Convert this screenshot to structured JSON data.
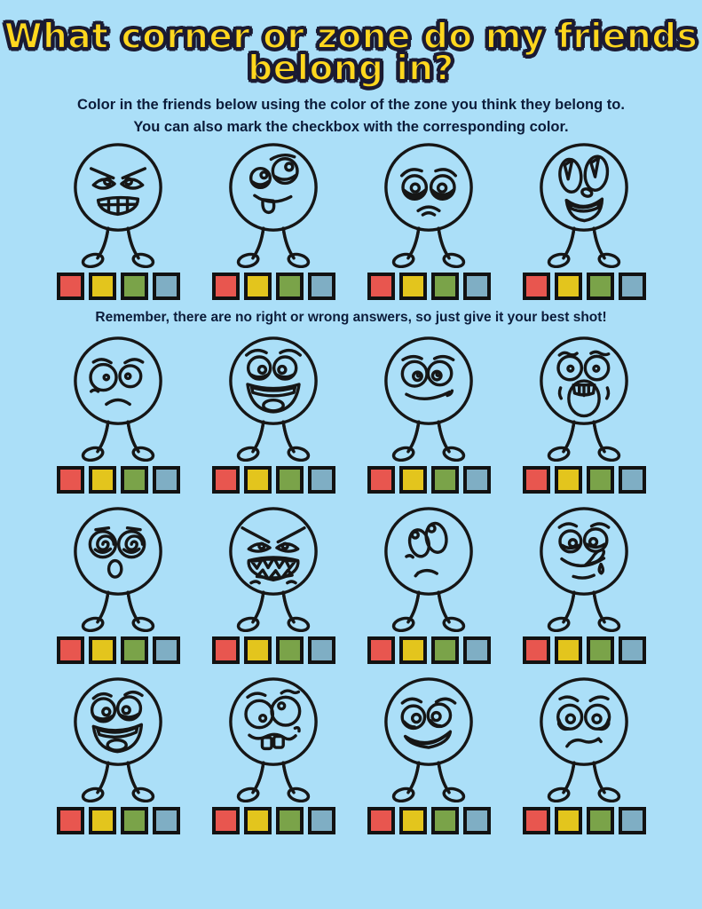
{
  "page": {
    "background": "#ABDFF8",
    "title_line1": "What corner or zone do my friends",
    "title_line2": "belong in?",
    "title_color": "#FFD71E",
    "subtitle_line1": "Color in the friends below using the color of the zone you think they belong to.",
    "subtitle_line2": "You can also mark the checkbox with the corresponding color.",
    "reminder": "Remember, there are no right or wrong answers, so just give it your best shot!"
  },
  "zones": {
    "checkbox_border": "#121212",
    "colors": [
      {
        "name": "red-zone",
        "hex": "#E8564F"
      },
      {
        "name": "yellow-zone",
        "hex": "#E3C51D"
      },
      {
        "name": "green-zone",
        "hex": "#7AA349"
      },
      {
        "name": "blue-zone",
        "hex": "#7FAEC4"
      }
    ]
  },
  "faces": {
    "rows": [
      {
        "items": [
          {
            "emotion": "angry"
          },
          {
            "emotion": "silly-tongue-out"
          },
          {
            "emotion": "sad-crying"
          },
          {
            "emotion": "excited"
          }
        ]
      },
      {
        "items": [
          {
            "emotion": "worried"
          },
          {
            "emotion": "laughing"
          },
          {
            "emotion": "content"
          },
          {
            "emotion": "terrified"
          }
        ]
      },
      {
        "items": [
          {
            "emotion": "dizzy"
          },
          {
            "emotion": "furious"
          },
          {
            "emotion": "annoyed-eye-roll"
          },
          {
            "emotion": "hungry-drooling"
          }
        ]
      },
      {
        "items": [
          {
            "emotion": "overjoyed"
          },
          {
            "emotion": "goofy-grin"
          },
          {
            "emotion": "embarrassed"
          },
          {
            "emotion": "tearful"
          }
        ]
      }
    ]
  }
}
